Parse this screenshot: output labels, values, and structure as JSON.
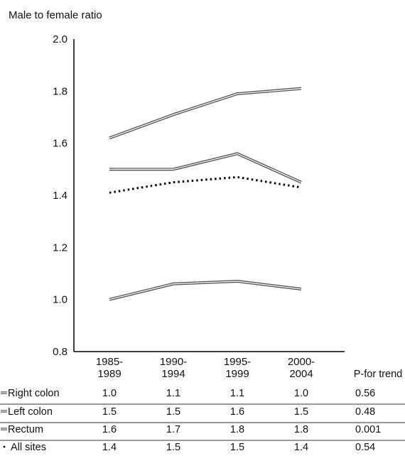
{
  "chart_data": {
    "type": "line",
    "ylabel": "Male to female ratio",
    "ylim": [
      0.8,
      2.0
    ],
    "yticks": [
      "0.8",
      "1.0",
      "1.2",
      "1.4",
      "1.6",
      "1.8",
      "2.0"
    ],
    "categories": [
      [
        "1985-",
        "1989"
      ],
      [
        "1990-",
        "1994"
      ],
      [
        "1995-",
        "1999"
      ],
      [
        "2000-",
        "2004"
      ]
    ],
    "table_header": "P-for trend",
    "grid": false,
    "series": [
      {
        "name": "Right colon",
        "values": [
          1.0,
          1.06,
          1.07,
          1.04
        ],
        "style": "double",
        "color": "#555555",
        "table": [
          "1.0",
          "1.1",
          "1.1",
          "1.0"
        ],
        "p_trend": "0.56"
      },
      {
        "name": "Left colon",
        "values": [
          1.5,
          1.5,
          1.56,
          1.45
        ],
        "style": "double",
        "color": "#555555",
        "table": [
          "1.5",
          "1.5",
          "1.6",
          "1.5"
        ],
        "p_trend": "0.48"
      },
      {
        "name": "Rectum",
        "values": [
          1.62,
          1.71,
          1.79,
          1.81
        ],
        "style": "double",
        "color": "#555555",
        "table": [
          "1.6",
          "1.7",
          "1.8",
          "1.8"
        ],
        "p_trend": "0.001"
      },
      {
        "name": "All sites",
        "values": [
          1.41,
          1.45,
          1.47,
          1.43
        ],
        "style": "dotted",
        "color": "#000000",
        "table": [
          "1.4",
          "1.5",
          "1.5",
          "1.4"
        ],
        "p_trend": "0.54"
      }
    ]
  }
}
